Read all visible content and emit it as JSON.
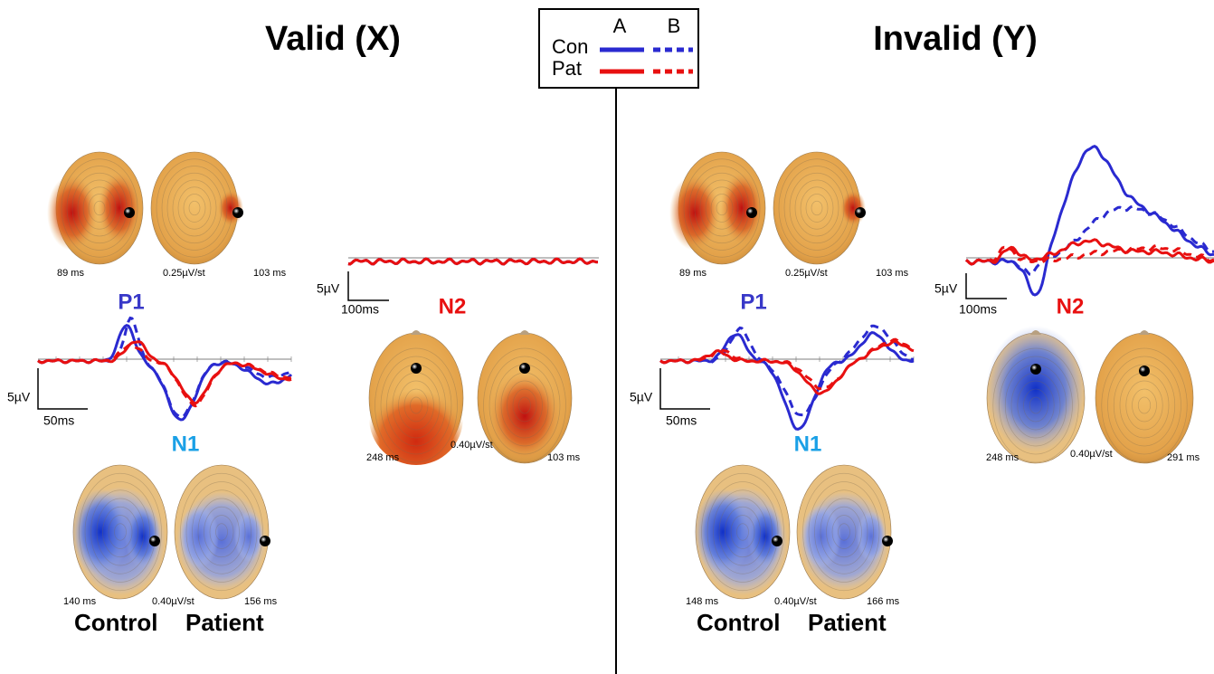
{
  "legend": {
    "columns": [
      "A",
      "B"
    ],
    "rows": [
      "Con",
      "Pat"
    ]
  },
  "panels": [
    {
      "title": "Valid (X)",
      "groups": [
        "Control",
        "Patient"
      ],
      "p1": {
        "label": "P1",
        "times": [
          "89 ms",
          "103 ms"
        ],
        "scale": "0.25µV/st"
      },
      "n1": {
        "label": "N1",
        "times": [
          "140 ms",
          "156 ms"
        ],
        "scale": "0.40µV/st"
      },
      "n2": {
        "label": "N2",
        "times": [
          "248 ms",
          "103 ms"
        ],
        "scale": "0.40µV/st"
      },
      "early_scale": {
        "amplitude": "5µV",
        "time": "50ms"
      },
      "late_scale": {
        "amplitude": "5µV",
        "time": "100ms"
      }
    },
    {
      "title": "Invalid (Y)",
      "groups": [
        "Control",
        "Patient"
      ],
      "p1": {
        "label": "P1",
        "times": [
          "89 ms",
          "103 ms"
        ],
        "scale": "0.25µV/st"
      },
      "n1": {
        "label": "N1",
        "times": [
          "148 ms",
          "166 ms"
        ],
        "scale": "0.40µV/st"
      },
      "n2": {
        "label": "N2",
        "times": [
          "248 ms",
          "291 ms"
        ],
        "scale": "0.40µV/st"
      },
      "early_scale": {
        "amplitude": "5µV",
        "time": "50ms"
      },
      "late_scale": {
        "amplitude": "5µV",
        "time": "100ms"
      }
    }
  ]
}
